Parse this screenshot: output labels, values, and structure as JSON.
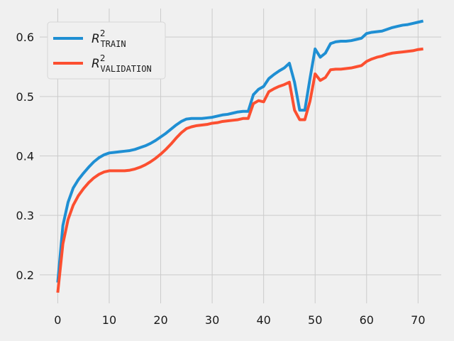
{
  "chart_data": {
    "type": "line",
    "title": "",
    "xlabel": "",
    "ylabel": "",
    "xlim": [
      -3.5,
      74.5
    ],
    "ylim": [
      0.152,
      0.648
    ],
    "xticks": [
      0,
      10,
      20,
      30,
      40,
      50,
      60,
      70
    ],
    "yticks": [
      0.2,
      0.3,
      0.4,
      0.5,
      0.6
    ],
    "grid": true,
    "legend_position": "top-left",
    "background": "#f0f0f0",
    "series": [
      {
        "name": "R2 TRAIN",
        "label_main": "R",
        "label_sup": "2",
        "label_sub": "TRAIN",
        "color": "#1f8fd3",
        "x": [
          0,
          1,
          2,
          3,
          4,
          5,
          6,
          7,
          8,
          9,
          10,
          11,
          12,
          13,
          14,
          15,
          16,
          17,
          18,
          19,
          20,
          21,
          22,
          23,
          24,
          25,
          26,
          27,
          28,
          29,
          30,
          31,
          32,
          33,
          34,
          35,
          36,
          37,
          38,
          39,
          40,
          41,
          42,
          43,
          44,
          45,
          46,
          47,
          48,
          49,
          50,
          51,
          52,
          53,
          54,
          55,
          56,
          57,
          58,
          59,
          60,
          61,
          62,
          63,
          64,
          65,
          66,
          67,
          68,
          69,
          70,
          71
        ],
        "y": [
          0.187,
          0.283,
          0.322,
          0.346,
          0.36,
          0.371,
          0.381,
          0.39,
          0.397,
          0.402,
          0.405,
          0.406,
          0.407,
          0.408,
          0.409,
          0.411,
          0.414,
          0.417,
          0.421,
          0.426,
          0.432,
          0.438,
          0.445,
          0.452,
          0.458,
          0.462,
          0.463,
          0.463,
          0.463,
          0.464,
          0.465,
          0.467,
          0.469,
          0.47,
          0.472,
          0.474,
          0.475,
          0.475,
          0.503,
          0.512,
          0.517,
          0.53,
          0.537,
          0.543,
          0.548,
          0.556,
          0.524,
          0.477,
          0.477,
          0.53,
          0.58,
          0.566,
          0.573,
          0.589,
          0.592,
          0.593,
          0.593,
          0.594,
          0.596,
          0.598,
          0.606,
          0.608,
          0.609,
          0.61,
          0.613,
          0.616,
          0.618,
          0.62,
          0.621,
          0.623,
          0.625,
          0.627
        ]
      },
      {
        "name": "R2 VALIDATION",
        "label_main": "R",
        "label_sup": "2",
        "label_sub": "VALIDATION",
        "color": "#fc4f30",
        "x": [
          0,
          1,
          2,
          3,
          4,
          5,
          6,
          7,
          8,
          9,
          10,
          11,
          12,
          13,
          14,
          15,
          16,
          17,
          18,
          19,
          20,
          21,
          22,
          23,
          24,
          25,
          26,
          27,
          28,
          29,
          30,
          31,
          32,
          33,
          34,
          35,
          36,
          37,
          38,
          39,
          40,
          41,
          42,
          43,
          44,
          45,
          46,
          47,
          48,
          49,
          50,
          51,
          52,
          53,
          54,
          55,
          56,
          57,
          58,
          59,
          60,
          61,
          62,
          63,
          64,
          65,
          66,
          67,
          68,
          69,
          70,
          71
        ],
        "y": [
          0.17,
          0.252,
          0.293,
          0.317,
          0.333,
          0.345,
          0.355,
          0.363,
          0.369,
          0.373,
          0.375,
          0.375,
          0.375,
          0.375,
          0.376,
          0.378,
          0.381,
          0.385,
          0.39,
          0.396,
          0.403,
          0.411,
          0.42,
          0.43,
          0.439,
          0.446,
          0.449,
          0.451,
          0.452,
          0.453,
          0.455,
          0.456,
          0.458,
          0.459,
          0.46,
          0.461,
          0.463,
          0.463,
          0.488,
          0.493,
          0.491,
          0.508,
          0.513,
          0.517,
          0.52,
          0.524,
          0.477,
          0.461,
          0.461,
          0.492,
          0.538,
          0.527,
          0.532,
          0.545,
          0.546,
          0.546,
          0.547,
          0.548,
          0.55,
          0.552,
          0.559,
          0.563,
          0.566,
          0.568,
          0.571,
          0.573,
          0.574,
          0.575,
          0.576,
          0.577,
          0.579,
          0.58
        ]
      }
    ]
  }
}
